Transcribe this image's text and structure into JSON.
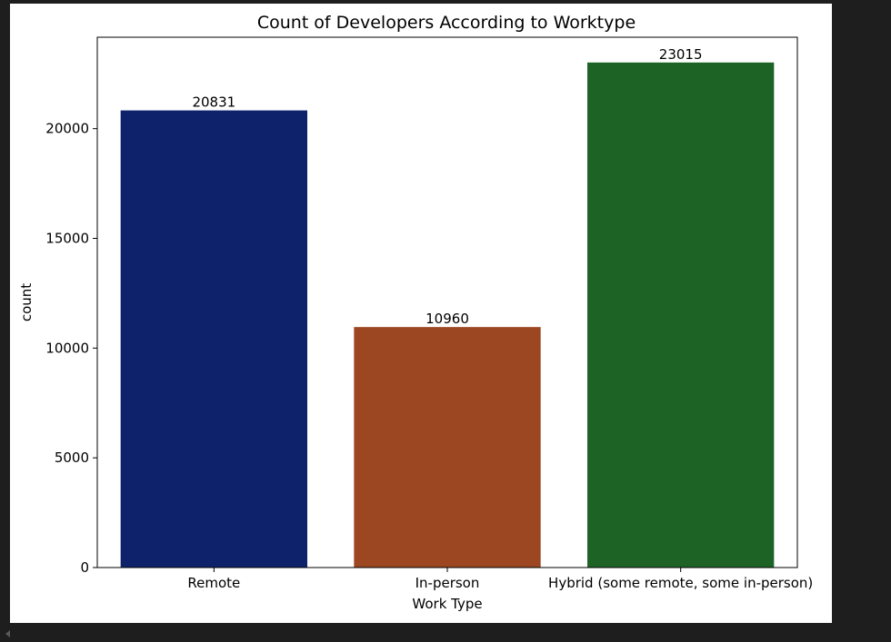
{
  "chart_data": {
    "type": "bar",
    "title": "Count of Developers According to Worktype",
    "xlabel": "Work Type",
    "ylabel": "count",
    "categories": [
      "Remote",
      "In-person",
      "Hybrid (some remote, some in-person)"
    ],
    "values": [
      20831,
      10960,
      23015
    ],
    "bar_colors": [
      "#0e226b",
      "#9c4722",
      "#1e6326"
    ],
    "data_labels": [
      "20831",
      "10960",
      "23015"
    ],
    "ylim": [
      0,
      24166
    ],
    "yticks": [
      0,
      5000,
      10000,
      15000,
      20000
    ],
    "ytick_labels": [
      "0",
      "5000",
      "10000",
      "15000",
      "20000"
    ],
    "grid": false,
    "legend": "none"
  },
  "colors": {
    "page_background": "#1e1e1e",
    "figure_background": "#ffffff"
  }
}
